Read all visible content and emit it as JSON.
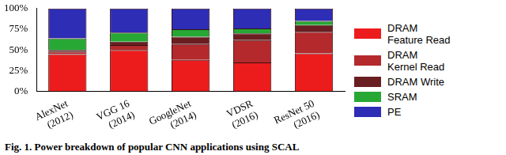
{
  "chart_data": {
    "type": "bar",
    "stacked": true,
    "grid": false,
    "legend": "right",
    "annotations": [
      "Fig. 1.  Power breakdown of popular CNN applications using SCAL"
    ],
    "categories": [
      "AlexNet\n(2012)",
      "VGG 16\n(2014)",
      "GoogleNet\n(2014)",
      "VDSR\n(2016)",
      "ResNet 50\n(2016)"
    ],
    "series": [
      {
        "name": "DRAM\nFeature Read",
        "color": "#ec1c1c",
        "values": [
          45,
          50,
          38,
          35,
          46
        ]
      },
      {
        "name": "DRAM\nKernel Read",
        "color": "#b3292c",
        "values": [
          3,
          6,
          19,
          27,
          26
        ]
      },
      {
        "name": "DRAM Write",
        "color": "#6b1e22",
        "values": [
          2,
          4,
          9,
          8,
          8
        ]
      },
      {
        "name": "SRAM",
        "color": "#27a835",
        "values": [
          14,
          11,
          9,
          6,
          5
        ]
      },
      {
        "name": "PE",
        "color": "#2d2db5",
        "values": [
          36,
          29,
          25,
          24,
          15
        ]
      }
    ],
    "ylim": [
      0,
      100
    ],
    "yticks": [
      {
        "value": 0,
        "label": "0%"
      },
      {
        "value": 25,
        "label": "25%"
      },
      {
        "value": 50,
        "label": "50%"
      },
      {
        "value": 75,
        "label": "75%"
      },
      {
        "value": 100,
        "label": "100%"
      }
    ]
  }
}
